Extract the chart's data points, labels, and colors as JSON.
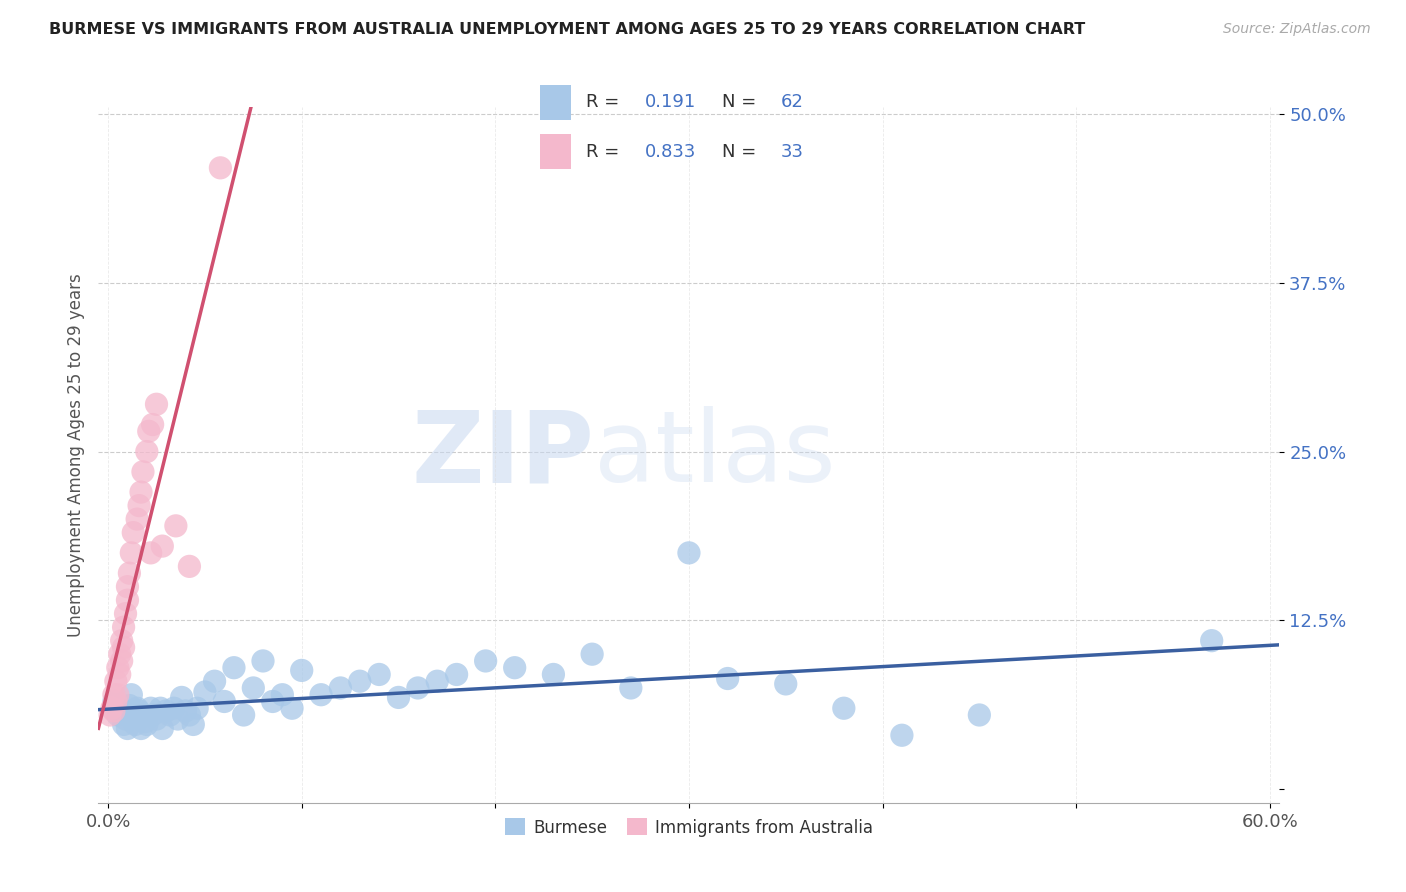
{
  "title": "BURMESE VS IMMIGRANTS FROM AUSTRALIA UNEMPLOYMENT AMONG AGES 25 TO 29 YEARS CORRELATION CHART",
  "source": "Source: ZipAtlas.com",
  "ylabel": "Unemployment Among Ages 25 to 29 years",
  "xlim": [
    -0.005,
    0.605
  ],
  "ylim": [
    -0.01,
    0.505
  ],
  "xtick_positions": [
    0.0,
    0.6
  ],
  "xticklabels": [
    "0.0%",
    "60.0%"
  ],
  "yticks": [
    0.0,
    0.125,
    0.25,
    0.375,
    0.5
  ],
  "yticklabels": [
    "",
    "12.5%",
    "25.0%",
    "37.5%",
    "50.0%"
  ],
  "grid_yticks": [
    0.125,
    0.25,
    0.375,
    0.5
  ],
  "burmese_R": 0.191,
  "burmese_N": 62,
  "australia_R": 0.833,
  "australia_N": 33,
  "burmese_color": "#a8c8e8",
  "australia_color": "#f4b8cc",
  "burmese_line_color": "#3a5fa0",
  "australia_line_color": "#d05070",
  "watermark_zip": "ZIP",
  "watermark_atlas": "atlas",
  "background_color": "#ffffff",
  "legend_label_burmese": "Burmese",
  "legend_label_australia": "Immigrants from Australia",
  "burmese_x": [
    0.003,
    0.005,
    0.006,
    0.007,
    0.008,
    0.009,
    0.01,
    0.011,
    0.012,
    0.013,
    0.014,
    0.015,
    0.016,
    0.017,
    0.018,
    0.019,
    0.02,
    0.022,
    0.023,
    0.025,
    0.027,
    0.028,
    0.03,
    0.032,
    0.034,
    0.036,
    0.038,
    0.04,
    0.042,
    0.044,
    0.046,
    0.05,
    0.055,
    0.06,
    0.065,
    0.07,
    0.075,
    0.08,
    0.085,
    0.09,
    0.095,
    0.1,
    0.11,
    0.12,
    0.13,
    0.14,
    0.15,
    0.16,
    0.17,
    0.18,
    0.195,
    0.21,
    0.23,
    0.25,
    0.27,
    0.3,
    0.32,
    0.35,
    0.38,
    0.41,
    0.45,
    0.57
  ],
  "burmese_y": [
    0.065,
    0.055,
    0.06,
    0.058,
    0.048,
    0.052,
    0.045,
    0.062,
    0.07,
    0.055,
    0.048,
    0.06,
    0.058,
    0.045,
    0.055,
    0.05,
    0.048,
    0.06,
    0.055,
    0.052,
    0.06,
    0.045,
    0.058,
    0.055,
    0.06,
    0.052,
    0.068,
    0.058,
    0.055,
    0.048,
    0.06,
    0.072,
    0.08,
    0.065,
    0.09,
    0.055,
    0.075,
    0.095,
    0.065,
    0.07,
    0.06,
    0.088,
    0.07,
    0.075,
    0.08,
    0.085,
    0.068,
    0.075,
    0.08,
    0.085,
    0.095,
    0.09,
    0.085,
    0.1,
    0.075,
    0.175,
    0.082,
    0.078,
    0.06,
    0.04,
    0.055,
    0.11
  ],
  "australia_x": [
    0.001,
    0.002,
    0.003,
    0.003,
    0.004,
    0.004,
    0.005,
    0.005,
    0.006,
    0.006,
    0.007,
    0.007,
    0.008,
    0.008,
    0.009,
    0.01,
    0.01,
    0.011,
    0.012,
    0.013,
    0.015,
    0.016,
    0.017,
    0.018,
    0.02,
    0.021,
    0.022,
    0.023,
    0.025,
    0.028,
    0.035,
    0.042,
    0.058
  ],
  "australia_y": [
    0.055,
    0.06,
    0.058,
    0.07,
    0.065,
    0.08,
    0.07,
    0.09,
    0.085,
    0.1,
    0.095,
    0.11,
    0.105,
    0.12,
    0.13,
    0.14,
    0.15,
    0.16,
    0.175,
    0.19,
    0.2,
    0.21,
    0.22,
    0.235,
    0.25,
    0.265,
    0.175,
    0.27,
    0.285,
    0.18,
    0.195,
    0.165,
    0.46
  ]
}
